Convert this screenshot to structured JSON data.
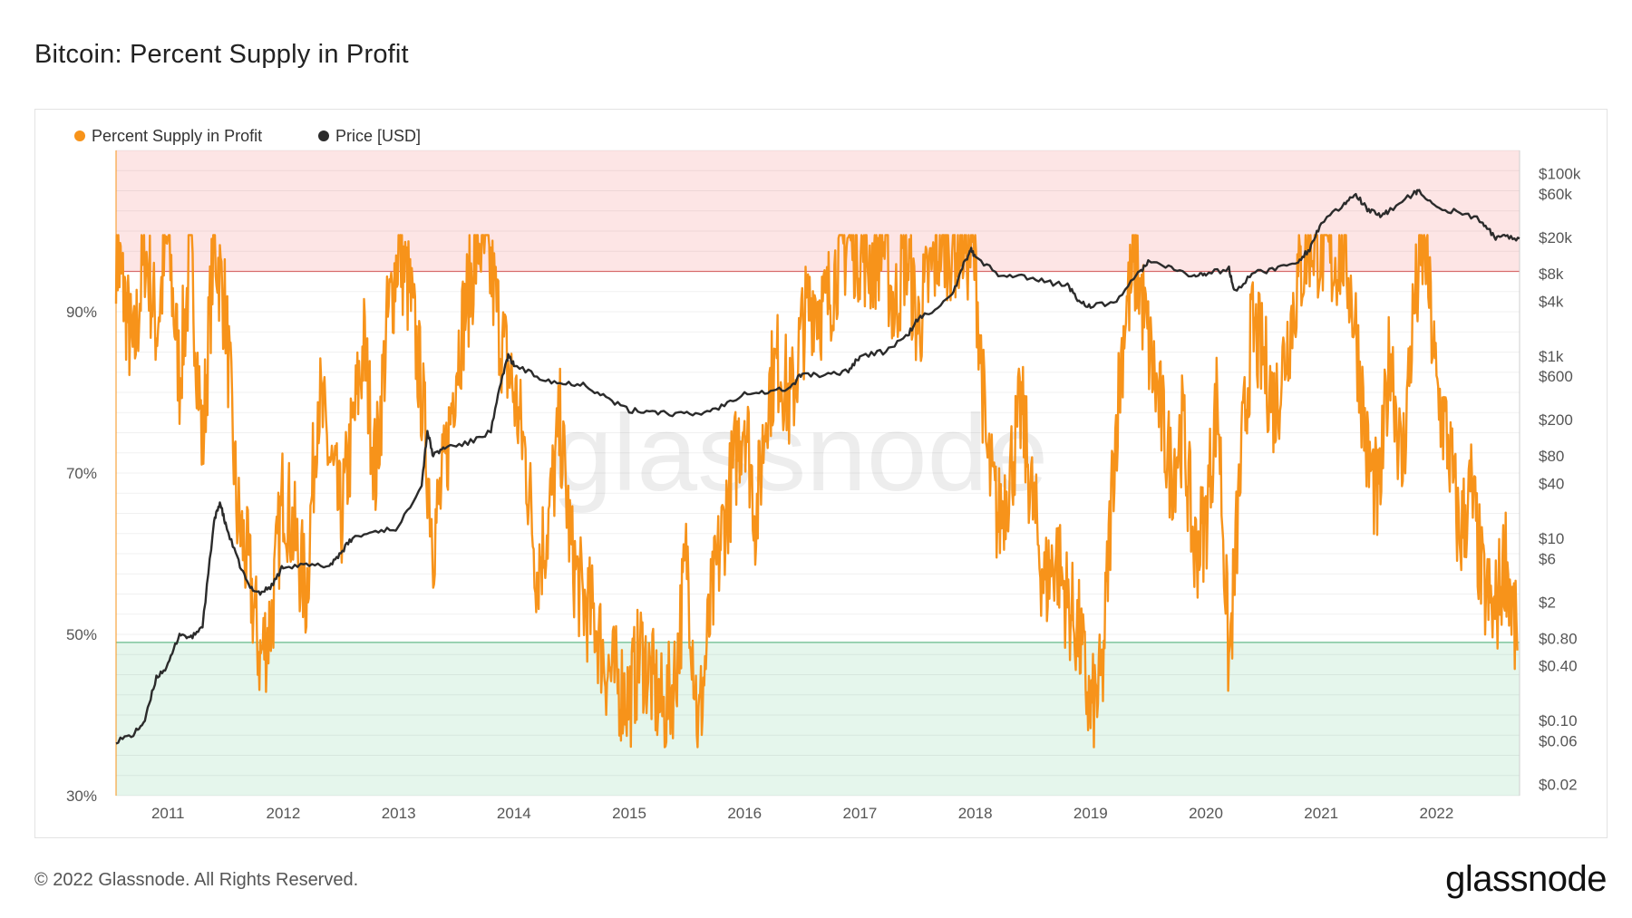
{
  "page": {
    "title": "Bitcoin: Percent Supply in Profit",
    "copyright": "© 2022 Glassnode. All Rights Reserved.",
    "logo_text": "glassnode",
    "watermark_text": "glassnode"
  },
  "colors": {
    "supply": "#f7931a",
    "price": "#2b2b2b",
    "upper_band": "#fde5e5",
    "lower_band": "#e5f6ec",
    "upper_line": "#e57373",
    "lower_line": "#66bb8a",
    "grid": "#ececec"
  },
  "chart_data": {
    "type": "line",
    "title": "Bitcoin: Percent Supply in Profit",
    "legend": [
      {
        "name": "Percent Supply in Profit",
        "color": "#f7931a"
      },
      {
        "name": "Price [USD]",
        "color": "#2b2b2b"
      }
    ],
    "legend_placement": "top-left",
    "x_range": [
      2010.55,
      2022.72
    ],
    "x_ticks": [
      "2011",
      "2012",
      "2013",
      "2014",
      "2015",
      "2016",
      "2017",
      "2018",
      "2019",
      "2020",
      "2021",
      "2022"
    ],
    "y_left": {
      "label": "",
      "range": [
        30,
        110
      ],
      "ticks": [
        "90%",
        "70%",
        "50%",
        "30%"
      ],
      "tick_values": [
        90,
        70,
        50,
        30
      ]
    },
    "y_right": {
      "label": "",
      "scale": "log",
      "range": [
        0.015,
        180000
      ],
      "ticks": [
        "$100k",
        "$60k",
        "$20k",
        "$8k",
        "$4k",
        "$1k",
        "$600",
        "$200",
        "$80",
        "$40",
        "$10",
        "$6",
        "$2",
        "$0.80",
        "$0.40",
        "$0.10",
        "$0.06",
        "$0.02"
      ],
      "tick_values": [
        100000,
        60000,
        20000,
        8000,
        4000,
        1000,
        600,
        200,
        80,
        40,
        10,
        6,
        2,
        0.8,
        0.4,
        0.1,
        0.06,
        0.02
      ]
    },
    "bands": [
      {
        "from": 95,
        "to": 110,
        "color": "#fde5e5"
      },
      {
        "from": 30,
        "to": 49,
        "color": "#e5f6ec"
      }
    ],
    "series": [
      {
        "name": "Percent Supply in Profit",
        "axis": "left",
        "x": [
          2010.55,
          2010.62,
          2010.7,
          2010.8,
          2010.9,
          2011.0,
          2011.1,
          2011.2,
          2011.3,
          2011.4,
          2011.5,
          2011.6,
          2011.7,
          2011.8,
          2011.9,
          2012.0,
          2012.1,
          2012.2,
          2012.3,
          2012.4,
          2012.5,
          2012.6,
          2012.7,
          2012.8,
          2012.9,
          2013.0,
          2013.1,
          2013.2,
          2013.3,
          2013.4,
          2013.5,
          2013.6,
          2013.7,
          2013.8,
          2013.9,
          2014.0,
          2014.1,
          2014.2,
          2014.3,
          2014.4,
          2014.5,
          2014.6,
          2014.7,
          2014.8,
          2014.9,
          2015.0,
          2015.1,
          2015.2,
          2015.3,
          2015.4,
          2015.5,
          2015.6,
          2015.7,
          2015.8,
          2015.9,
          2016.0,
          2016.1,
          2016.2,
          2016.3,
          2016.4,
          2016.5,
          2016.6,
          2016.7,
          2016.8,
          2016.9,
          2017.0,
          2017.1,
          2017.2,
          2017.3,
          2017.4,
          2017.5,
          2017.6,
          2017.7,
          2017.8,
          2017.9,
          2018.0,
          2018.1,
          2018.2,
          2018.3,
          2018.4,
          2018.5,
          2018.6,
          2018.7,
          2018.8,
          2018.9,
          2019.0,
          2019.1,
          2019.2,
          2019.3,
          2019.4,
          2019.5,
          2019.6,
          2019.7,
          2019.8,
          2019.9,
          2020.0,
          2020.1,
          2020.2,
          2020.3,
          2020.4,
          2020.5,
          2020.6,
          2020.7,
          2020.8,
          2020.9,
          2021.0,
          2021.1,
          2021.2,
          2021.3,
          2021.4,
          2021.5,
          2021.6,
          2021.7,
          2021.8,
          2021.9,
          2022.0,
          2022.1,
          2022.2,
          2022.3,
          2022.4,
          2022.5,
          2022.6,
          2022.7
        ],
        "values": [
          98,
          92,
          84,
          98,
          88,
          99,
          82,
          97,
          73,
          99,
          90,
          65,
          58,
          47,
          52,
          68,
          62,
          55,
          80,
          72,
          64,
          75,
          86,
          70,
          88,
          98,
          92,
          80,
          62,
          70,
          84,
          92,
          99,
          95,
          86,
          80,
          72,
          58,
          64,
          76,
          60,
          54,
          52,
          46,
          44,
          42,
          48,
          44,
          40,
          45,
          60,
          38,
          52,
          62,
          70,
          78,
          64,
          80,
          84,
          78,
          88,
          92,
          90,
          96,
          99,
          98,
          96,
          99,
          90,
          98,
          88,
          94,
          99,
          98,
          99,
          96,
          72,
          64,
          70,
          78,
          66,
          56,
          60,
          54,
          50,
          40,
          44,
          72,
          90,
          96,
          86,
          78,
          70,
          76,
          60,
          64,
          80,
          46,
          70,
          88,
          84,
          78,
          86,
          94,
          99,
          98,
          96,
          98,
          88,
          72,
          66,
          86,
          70,
          90,
          99,
          80,
          74,
          62,
          68,
          56,
          52,
          60,
          48
        ]
      },
      {
        "name": "Price [USD]",
        "axis": "right",
        "x": [
          2010.55,
          2010.7,
          2010.8,
          2010.9,
          2011.0,
          2011.1,
          2011.2,
          2011.3,
          2011.4,
          2011.45,
          2011.5,
          2011.6,
          2011.7,
          2011.8,
          2011.9,
          2012.0,
          2012.2,
          2012.4,
          2012.5,
          2012.6,
          2012.8,
          2013.0,
          2013.2,
          2013.25,
          2013.3,
          2013.4,
          2013.6,
          2013.8,
          2013.9,
          2013.95,
          2014.0,
          2014.2,
          2014.4,
          2014.6,
          2014.8,
          2015.0,
          2015.2,
          2015.4,
          2015.6,
          2015.8,
          2016.0,
          2016.2,
          2016.4,
          2016.5,
          2016.7,
          2016.9,
          2017.0,
          2017.2,
          2017.4,
          2017.5,
          2017.6,
          2017.8,
          2017.9,
          2017.96,
          2018.0,
          2018.2,
          2018.4,
          2018.6,
          2018.8,
          2018.9,
          2019.0,
          2019.2,
          2019.4,
          2019.5,
          2019.7,
          2019.9,
          2020.0,
          2020.2,
          2020.25,
          2020.4,
          2020.6,
          2020.8,
          2020.9,
          2021.0,
          2021.2,
          2021.3,
          2021.4,
          2021.5,
          2021.6,
          2021.8,
          2021.85,
          2022.0,
          2022.2,
          2022.4,
          2022.5,
          2022.6,
          2022.72
        ],
        "values": [
          0.06,
          0.07,
          0.1,
          0.3,
          0.4,
          0.9,
          0.8,
          1.1,
          15,
          25,
          14,
          6,
          3,
          2.5,
          3,
          5,
          5,
          5,
          7,
          10,
          12,
          13,
          40,
          150,
          80,
          100,
          110,
          150,
          600,
          1000,
          800,
          600,
          500,
          500,
          350,
          250,
          250,
          230,
          230,
          280,
          400,
          400,
          450,
          650,
          600,
          700,
          1000,
          1100,
          1600,
          2500,
          3000,
          4500,
          10000,
          15000,
          12000,
          8000,
          7500,
          6500,
          6000,
          4000,
          3500,
          3800,
          7500,
          11000,
          9000,
          7500,
          8000,
          9000,
          5000,
          8000,
          9000,
          11000,
          15000,
          29000,
          45000,
          60000,
          40000,
          35000,
          40000,
          60000,
          64000,
          42000,
          38000,
          30000,
          20000,
          21000,
          19500
        ]
      }
    ]
  }
}
